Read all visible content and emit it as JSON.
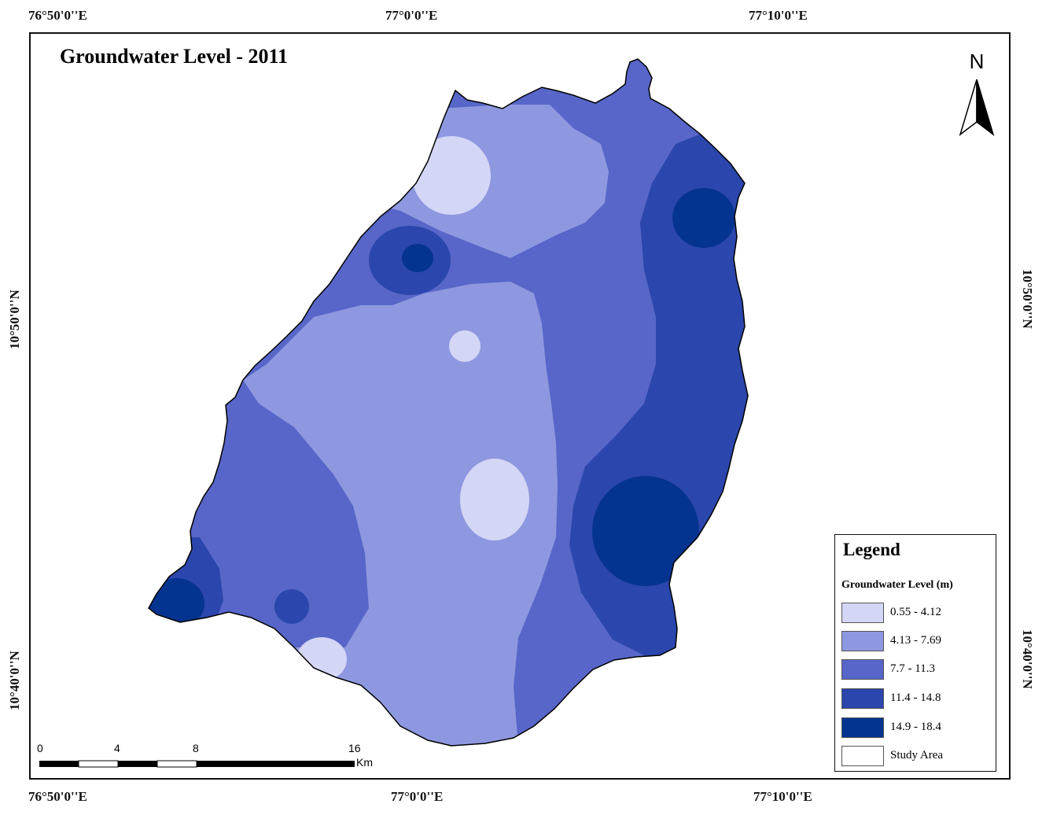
{
  "map": {
    "title": "Groundwater Level - 2011",
    "north_label": "N",
    "coords": {
      "top": [
        "76°50'0''E",
        "77°0'0''E",
        "77°10'0''E"
      ],
      "bottom": [
        "76°50'0''E",
        "77°0'0''E",
        "77°10'0''E"
      ],
      "left": [
        "10°50'0''N",
        "10°40'0''N"
      ],
      "right": [
        "10°50'0''N",
        "10°40'0''N"
      ]
    },
    "legend": {
      "title": "Legend",
      "subtitle": "Groundwater Level (m)",
      "classes": [
        {
          "label": "0.55 - 4.12",
          "color": "#d4d6f6"
        },
        {
          "label": "4.13 - 7.69",
          "color": "#8e98e0"
        },
        {
          "label": "7.7 - 11.3",
          "color": "#5766c8"
        },
        {
          "label": "11.4 - 14.8",
          "color": "#2b46ac"
        },
        {
          "label": "14.9 - 18.4",
          "color": "#04348f"
        },
        {
          "label": "Study Area",
          "color": "#ffffff"
        }
      ]
    },
    "scale": {
      "ticks": [
        "0",
        "4",
        "8",
        "16"
      ],
      "unit": "Km"
    }
  }
}
